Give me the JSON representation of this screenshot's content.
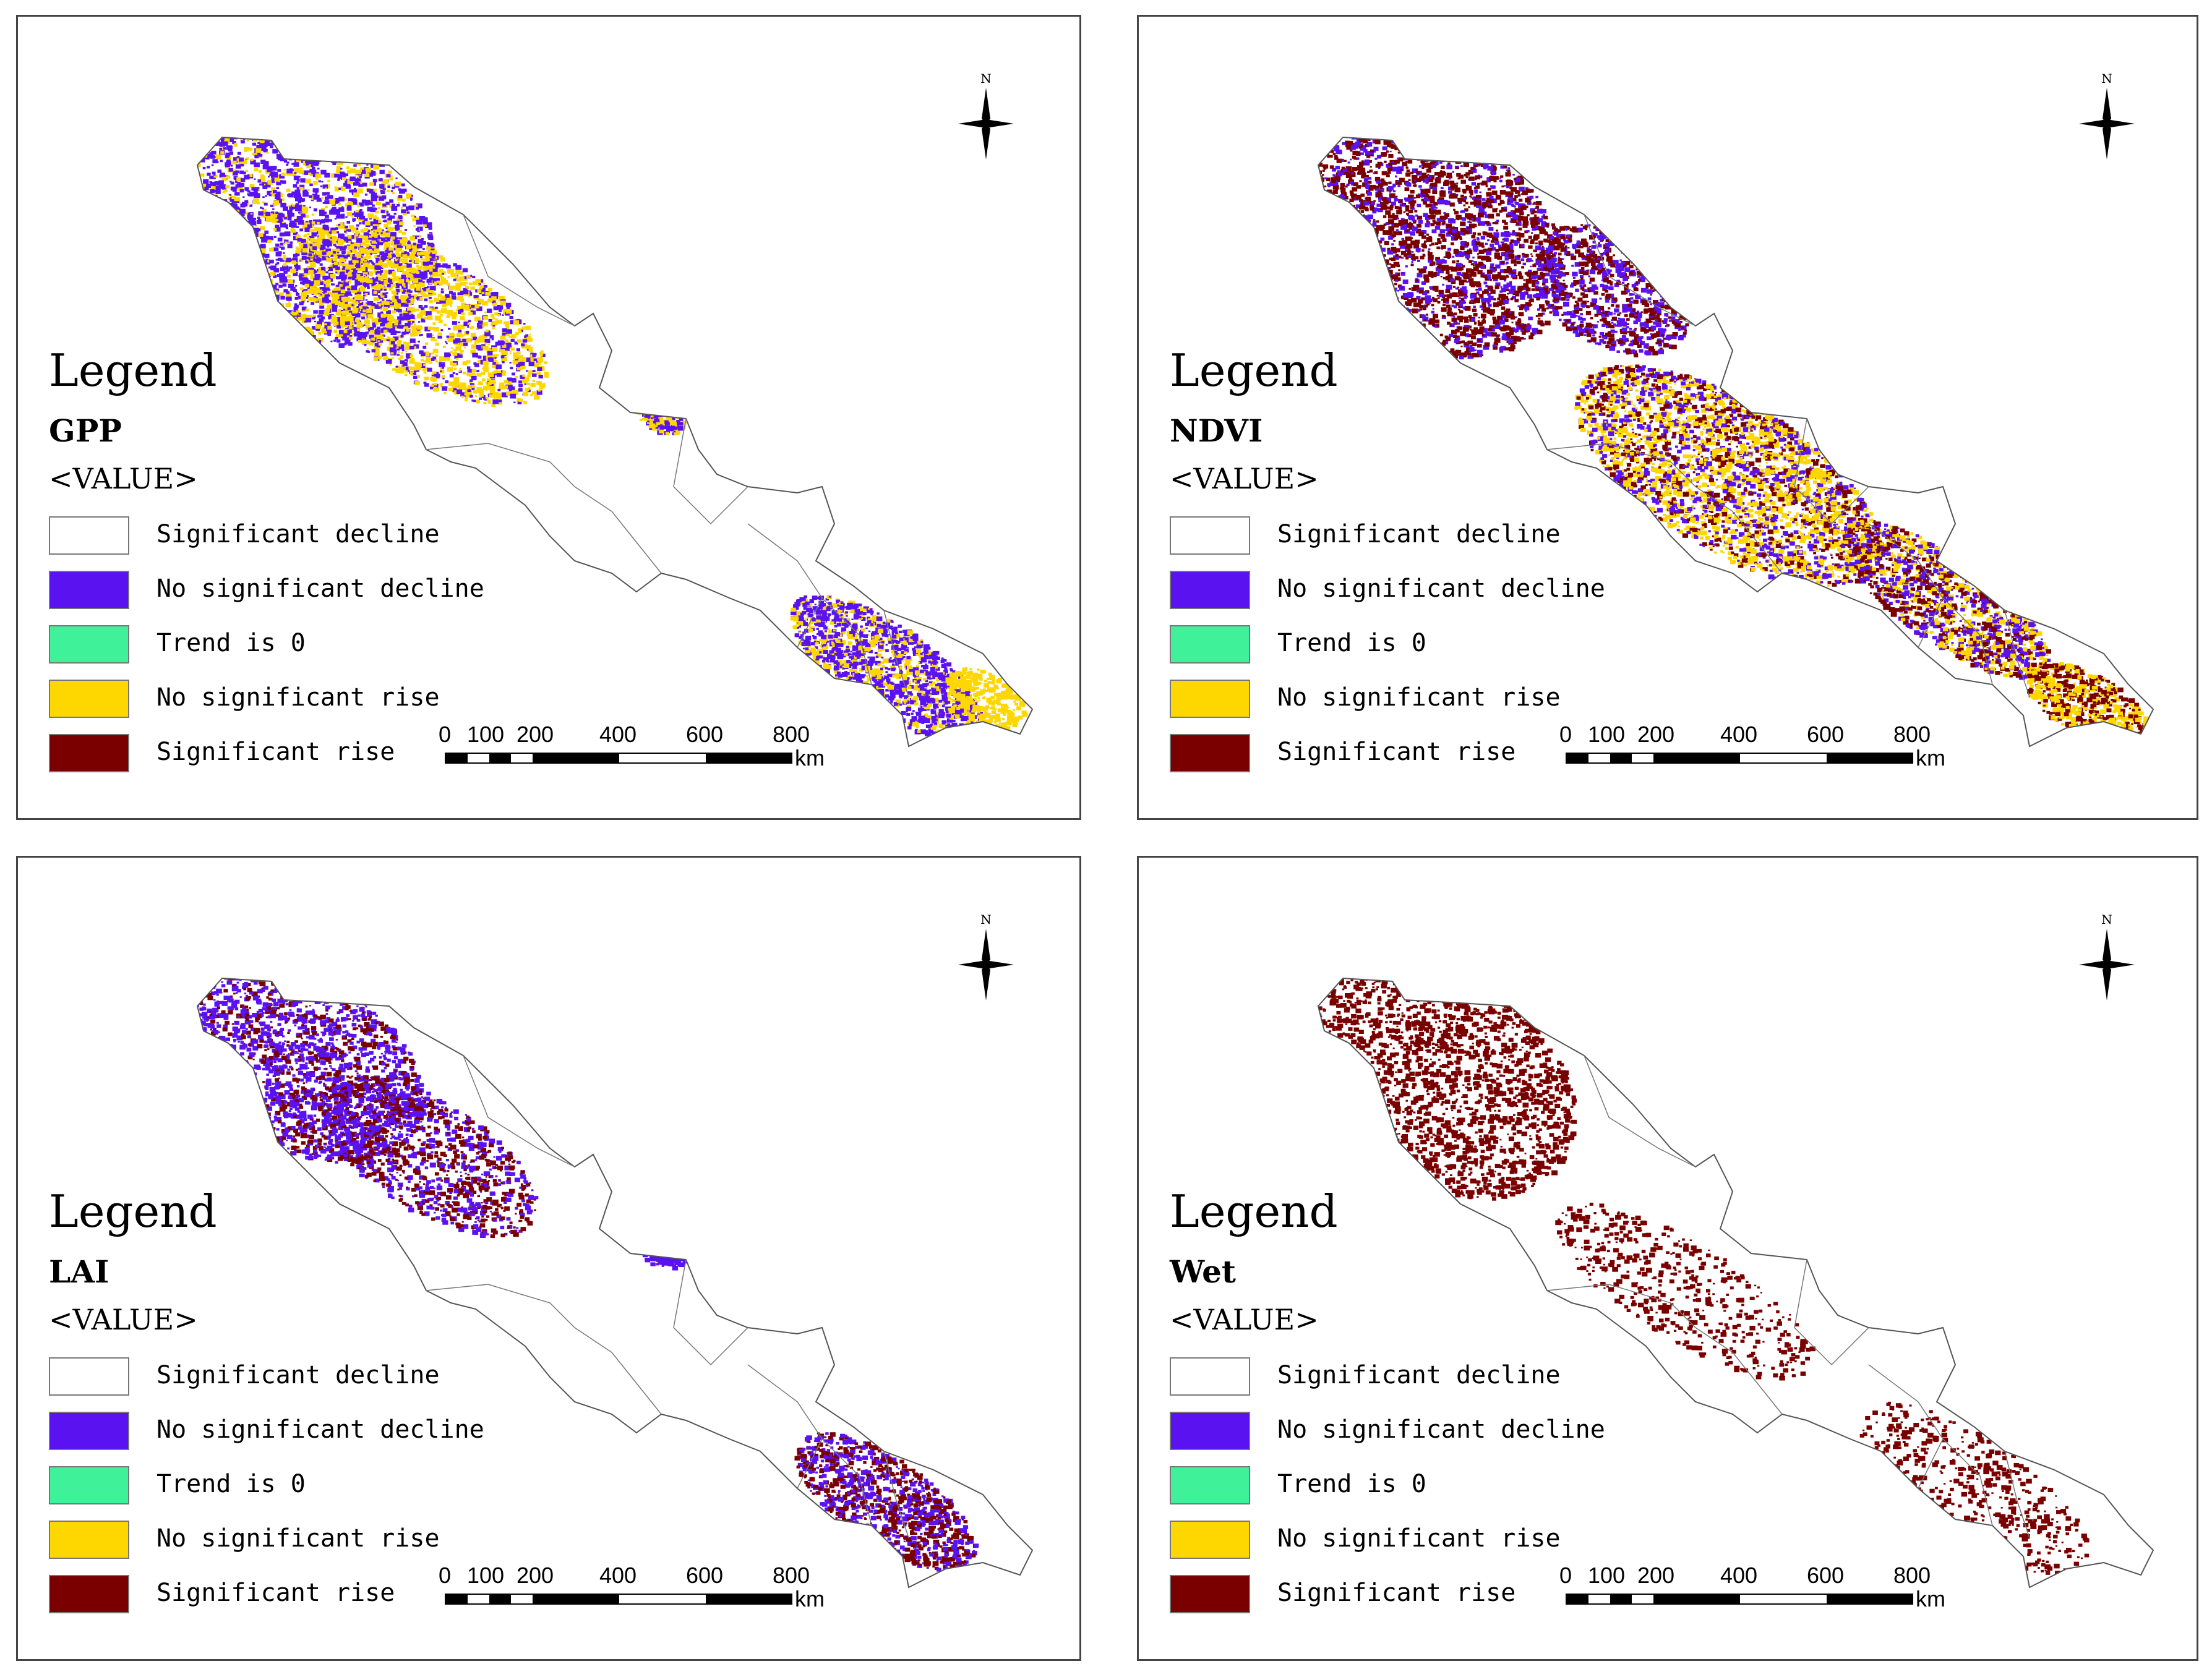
{
  "legend": {
    "title": "Legend",
    "value_label": "<VALUE>",
    "items": [
      {
        "label": "Significant decline",
        "color": "#ffffff"
      },
      {
        "label": "No significant decline",
        "color": "#5a12f0"
      },
      {
        "label": "Trend is 0",
        "color": "#3ff29a"
      },
      {
        "label": "No significant rise",
        "color": "#ffd700"
      },
      {
        "label": "Significant rise",
        "color": "#7a0000"
      }
    ]
  },
  "north_label": "N",
  "scale": {
    "ticks": [
      "0",
      "100",
      "200",
      "400",
      "600",
      "800"
    ],
    "unit": "km"
  },
  "panels": [
    {
      "variable": "GPP",
      "dominant_colors": [
        "#5a12f0",
        "#ffd700"
      ]
    },
    {
      "variable": "NDVI",
      "dominant_colors": [
        "#7a0000",
        "#5a12f0",
        "#ffd700"
      ]
    },
    {
      "variable": "LAI",
      "dominant_colors": [
        "#5a12f0",
        "#7a0000"
      ]
    },
    {
      "variable": "Wet",
      "dominant_colors": [
        "#7a0000"
      ]
    }
  ]
}
